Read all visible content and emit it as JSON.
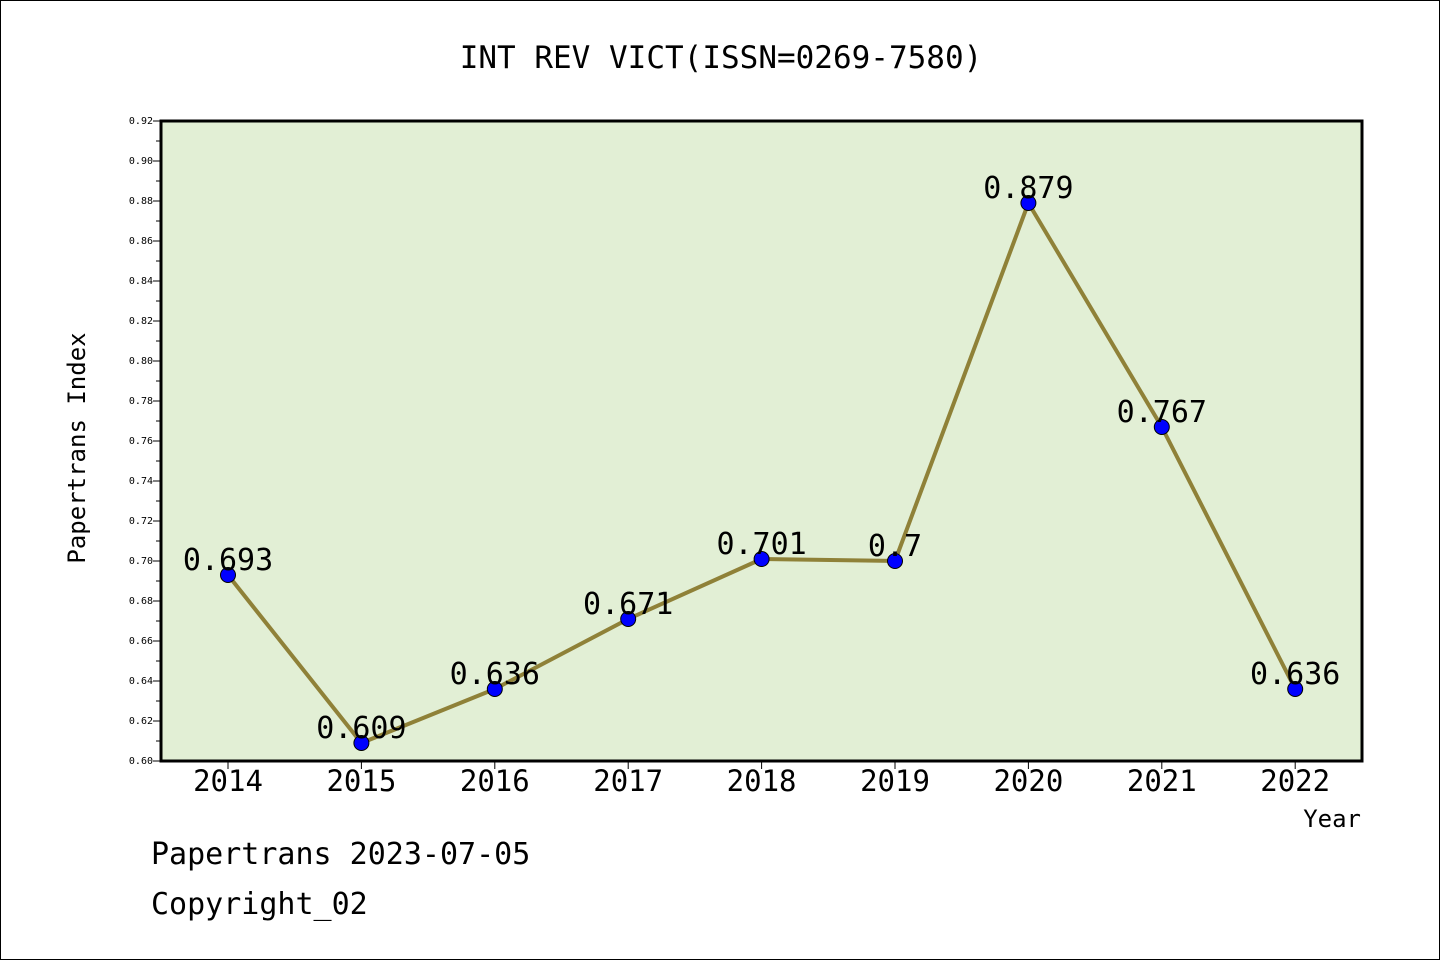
{
  "chart_data": {
    "type": "line",
    "title": "INT REV VICT(ISSN=0269-7580)",
    "xlabel": "Year",
    "ylabel": "Papertrans Index",
    "categories": [
      "2014",
      "2015",
      "2016",
      "2017",
      "2018",
      "2019",
      "2020",
      "2021",
      "2022"
    ],
    "values": [
      0.693,
      0.609,
      0.636,
      0.671,
      0.701,
      0.7,
      0.879,
      0.767,
      0.636
    ],
    "data_labels": [
      "0.693",
      "0.609",
      "0.636",
      "0.671",
      "0.701",
      "0.7",
      "0.879",
      "0.767",
      "0.636"
    ],
    "ylim": [
      0.6,
      0.92
    ],
    "y_ticks": [
      "0.60",
      "0.62",
      "0.64",
      "0.66",
      "0.68",
      "0.70",
      "0.72",
      "0.74",
      "0.76",
      "0.78",
      "0.80",
      "0.82",
      "0.84",
      "0.86",
      "0.88",
      "0.90",
      "0.92"
    ],
    "grid": false,
    "colors": {
      "plot_background": "#e2efd5",
      "line": "#8f8138",
      "marker": "#0000ff"
    }
  },
  "footer": {
    "date_line": "Papertrans 2023-07-05",
    "copyright": "Copyright_02"
  }
}
